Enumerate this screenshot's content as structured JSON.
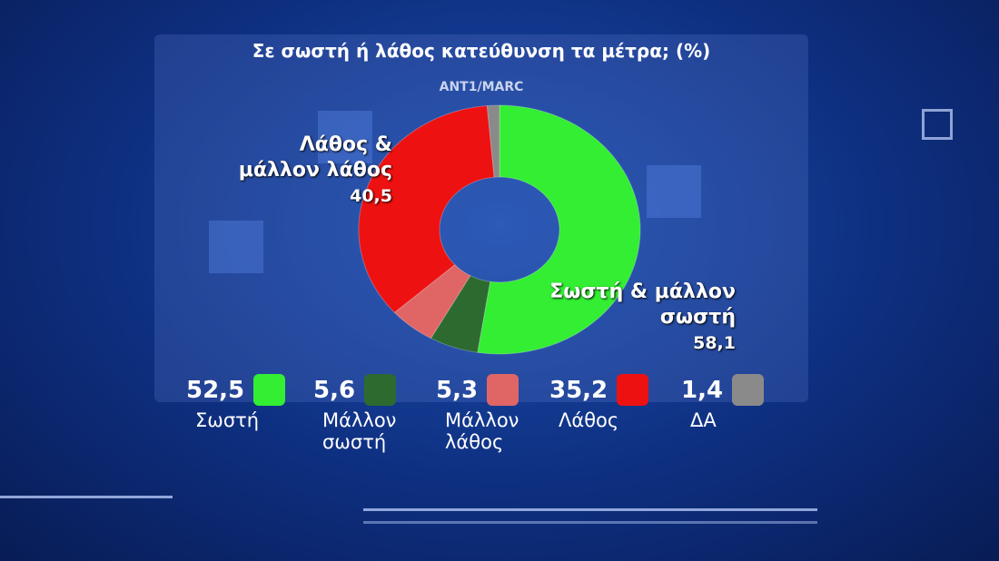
{
  "chart_data": {
    "type": "donut",
    "title": "Σε σωστή ή λάθος κατεύθυνση τα μέτρα; (%)",
    "source": "ANT1/MARC",
    "categories": [
      "Σωστή",
      "Μάλλον σωστή",
      "Μάλλον λάθος",
      "Λάθος",
      "ΔΑ"
    ],
    "values": [
      52.5,
      5.6,
      5.3,
      35.2,
      1.4
    ],
    "value_labels": [
      "52,5",
      "5,6",
      "5,3",
      "35,2",
      "1,4"
    ],
    "colors": [
      "#33ee33",
      "#2d6a30",
      "#e06666",
      "#ee1111",
      "#8a8a8a"
    ],
    "annotations": [
      {
        "text": "Λάθος & μάλλον λάθος",
        "value": 40.5,
        "value_label": "40,5"
      },
      {
        "text": "Σωστή & μάλλον σωστή",
        "value": 58.1,
        "value_label": "58,1"
      }
    ]
  }
}
